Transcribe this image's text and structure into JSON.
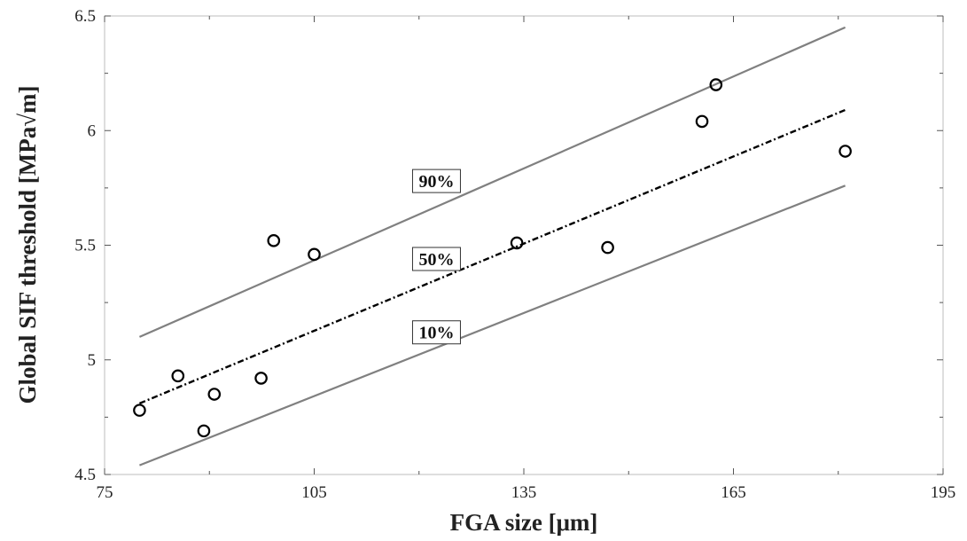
{
  "chart_data": {
    "type": "scatter",
    "xlabel": "FGA size [μm]",
    "ylabel": "Global SIF threshold [MPa√m]",
    "xlim": [
      75,
      195
    ],
    "ylim": [
      4.5,
      6.5
    ],
    "xticks": [
      "75",
      "105",
      "135",
      "165",
      "195"
    ],
    "yticks": [
      "4.5",
      "5",
      "5.5",
      "6",
      "6.5"
    ],
    "grid": false,
    "series": [
      {
        "type": "scatter",
        "marker": "open-circle",
        "color": "#000000",
        "points": [
          {
            "x": 80.0,
            "y": 4.78
          },
          {
            "x": 85.5,
            "y": 4.93
          },
          {
            "x": 89.2,
            "y": 4.69
          },
          {
            "x": 90.7,
            "y": 4.85
          },
          {
            "x": 97.4,
            "y": 4.92
          },
          {
            "x": 99.2,
            "y": 5.52
          },
          {
            "x": 105.0,
            "y": 5.46
          },
          {
            "x": 134.0,
            "y": 5.51
          },
          {
            "x": 147.0,
            "y": 5.49
          },
          {
            "x": 160.5,
            "y": 6.04
          },
          {
            "x": 162.5,
            "y": 6.2
          },
          {
            "x": 181.0,
            "y": 5.91
          }
        ]
      },
      {
        "type": "line",
        "label": "90%",
        "style": "solid",
        "color": "#808080",
        "x": [
          80,
          181
        ],
        "y": [
          5.1,
          6.45
        ],
        "label_at": {
          "x": 122.5,
          "y": 5.78
        }
      },
      {
        "type": "line",
        "label": "50%",
        "style": "dash-dot",
        "color": "#000000",
        "x": [
          80,
          181
        ],
        "y": [
          4.81,
          6.09
        ],
        "label_at": {
          "x": 122.5,
          "y": 5.44
        }
      },
      {
        "type": "line",
        "label": "10%",
        "style": "solid",
        "color": "#808080",
        "x": [
          80,
          181
        ],
        "y": [
          4.54,
          5.76
        ],
        "label_at": {
          "x": 122.5,
          "y": 5.12
        }
      }
    ]
  }
}
